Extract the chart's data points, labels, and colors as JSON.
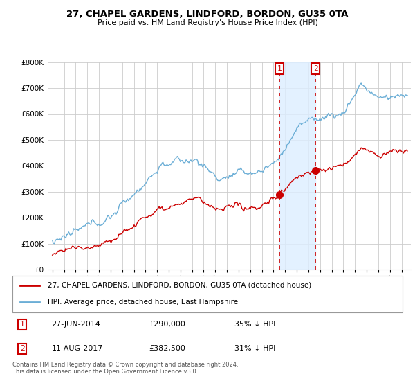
{
  "title": "27, CHAPEL GARDENS, LINDFORD, BORDON, GU35 0TA",
  "subtitle": "Price paid vs. HM Land Registry's House Price Index (HPI)",
  "legend_entry1": "27, CHAPEL GARDENS, LINDFORD, BORDON, GU35 0TA (detached house)",
  "legend_entry2": "HPI: Average price, detached house, East Hampshire",
  "transaction1_date": "27-JUN-2014",
  "transaction1_price": 290000,
  "transaction1_pct": "35%",
  "transaction2_date": "11-AUG-2017",
  "transaction2_price": 382500,
  "transaction2_pct": "31%",
  "footer": "Contains HM Land Registry data © Crown copyright and database right 2024.\nThis data is licensed under the Open Government Licence v3.0.",
  "hpi_color": "#6baed6",
  "price_color": "#cc0000",
  "shading_color": "#ddeeff",
  "label_color": "#cc0000",
  "ylim": [
    0,
    800000
  ],
  "yticks": [
    0,
    100000,
    200000,
    300000,
    400000,
    500000,
    600000,
    700000,
    800000
  ],
  "t1_year": 2014.5,
  "t2_year": 2017.6
}
